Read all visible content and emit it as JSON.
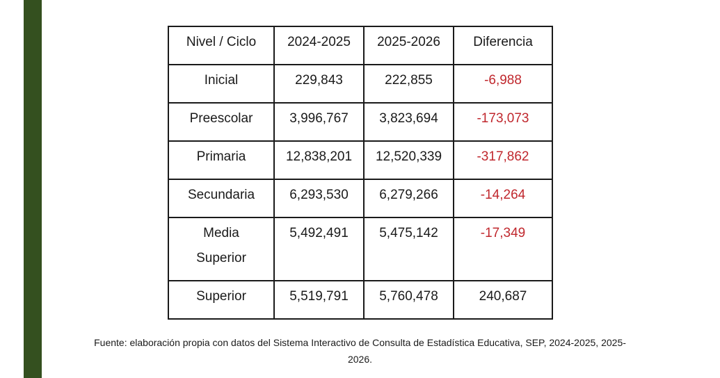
{
  "table": {
    "headers": [
      "Nivel  / Ciclo",
      "2024-2025",
      "2025-2026",
      "Diferencia"
    ],
    "rows": [
      {
        "nivel": "Inicial",
        "y2024": "229,843",
        "y2025": "222,855",
        "diferencia": "-6,988"
      },
      {
        "nivel": "Preescolar",
        "y2024": "3,996,767",
        "y2025": "3,823,694",
        "diferencia": "-173,073"
      },
      {
        "nivel": "Primaria",
        "y2024": "12,838,201",
        "y2025": "12,520,339",
        "diferencia": "-317,862"
      },
      {
        "nivel": "Secundaria",
        "y2024": "6,293,530",
        "y2025": "6,279,266",
        "diferencia": "-14,264"
      },
      {
        "nivel": "Media Superior",
        "y2024": "5,492,491",
        "y2025": "5,475,142",
        "diferencia": "-17,349"
      },
      {
        "nivel": "Superior",
        "y2024": "5,519,791",
        "y2025": "5,760,478",
        "diferencia": "240,687"
      }
    ]
  },
  "source": "Fuente: elaboración propia con datos del Sistema Interactivo de Consulta de Estadística Educativa, SEP, 2024-2025, 2025-2026.",
  "colors": {
    "left_bar": "#34501f",
    "negative": "#c0272d",
    "border": "#1a1a1a"
  }
}
